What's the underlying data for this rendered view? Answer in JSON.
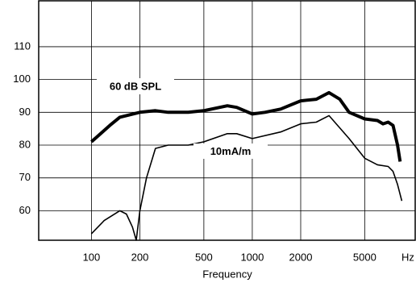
{
  "chart_data": {
    "type": "line",
    "xlabel": "Frequency",
    "xunit": "Hz",
    "xscale": "log",
    "grid": true,
    "xlim": [
      47,
      10300
    ],
    "ylim": [
      51,
      124
    ],
    "xticks": [
      100,
      200,
      500,
      1000,
      2000,
      5000
    ],
    "yticks": [
      60,
      70,
      80,
      90,
      100,
      110
    ],
    "series": [
      {
        "name": "60 dB SPL",
        "color": "#000000",
        "width": 4,
        "x": [
          100,
          130,
          150,
          200,
          250,
          300,
          400,
          500,
          700,
          800,
          1000,
          1200,
          1500,
          2000,
          2500,
          3000,
          3500,
          4000,
          5000,
          6000,
          6500,
          7000,
          7500,
          8000,
          8300
        ],
        "values": [
          81,
          86,
          88.5,
          90,
          90.5,
          90,
          90,
          90.5,
          92,
          91.5,
          89.5,
          90,
          91,
          93.5,
          94,
          96,
          94,
          90,
          88,
          87.5,
          86.5,
          87,
          86,
          80,
          75
        ]
      },
      {
        "name": "10mA/m",
        "color": "#000000",
        "width": 1.6,
        "x": [
          100,
          120,
          150,
          165,
          180,
          190,
          200,
          220,
          250,
          300,
          400,
          500,
          700,
          800,
          1000,
          1500,
          2000,
          2500,
          3000,
          4000,
          5000,
          6000,
          7000,
          7500,
          8000,
          8500
        ],
        "values": [
          53,
          57,
          60,
          59,
          55,
          51,
          60,
          70,
          79,
          80,
          80,
          81,
          83.5,
          83.5,
          82,
          84,
          86.5,
          87,
          89,
          82,
          76,
          74,
          73.5,
          72,
          68,
          63
        ]
      }
    ]
  }
}
